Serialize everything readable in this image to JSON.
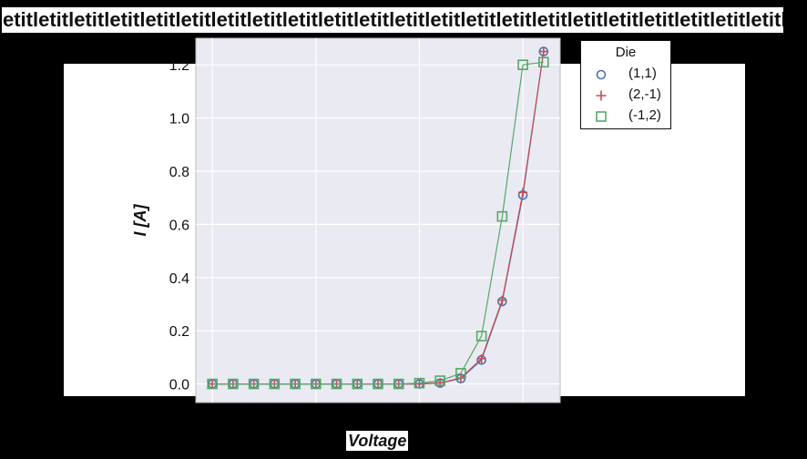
{
  "title": "etitletitletitletitletitletitletitletitletitletitletitletitletitletitletitletitletitletitletitletitletitletitle",
  "chart_data": {
    "type": "scatter",
    "xlabel": "Voltage",
    "ylabel": "I [A]",
    "ylim": [
      -0.07,
      1.3
    ],
    "yticks": [
      0.0,
      0.2,
      0.4,
      0.6,
      0.8,
      1.0,
      1.2
    ],
    "ytick_labels": [
      "0.0",
      "0.2",
      "0.4",
      "0.6",
      "0.8",
      "1.0",
      "1.2"
    ],
    "xlim": [
      -0.8,
      16.8
    ],
    "grid": true,
    "legend_title": "Die",
    "legend_position": "outside-top-right",
    "x": [
      0,
      1,
      2,
      3,
      4,
      5,
      6,
      7,
      8,
      9,
      10,
      11,
      12,
      13,
      14,
      15,
      16
    ],
    "series": [
      {
        "name": "(1,1)",
        "marker": "circle",
        "color": "#4c72b0",
        "values": [
          0.0,
          0.0,
          0.0,
          0.0,
          0.0,
          0.0,
          0.0,
          0.0,
          0.0,
          0.0,
          0.0,
          0.003,
          0.02,
          0.09,
          0.31,
          0.71,
          1.25
        ]
      },
      {
        "name": "(2,-1)",
        "marker": "plus",
        "color": "#c44e52",
        "values": [
          0.0,
          0.0,
          0.0,
          0.0,
          0.0,
          0.0,
          0.0,
          0.0,
          0.0,
          0.0,
          0.0,
          0.004,
          0.022,
          0.095,
          0.315,
          0.72,
          1.25
        ]
      },
      {
        "name": "(-1,2)",
        "marker": "square",
        "color": "#55a868",
        "values": [
          0.0,
          0.0,
          0.0,
          0.0,
          0.0,
          0.0,
          0.0,
          0.0,
          0.0,
          0.0,
          0.003,
          0.012,
          0.04,
          0.18,
          0.63,
          1.2,
          1.21
        ]
      }
    ]
  },
  "colors": {
    "plot_background": "#eaeaf2",
    "page_background": "#000000",
    "grid": "#ffffff"
  }
}
